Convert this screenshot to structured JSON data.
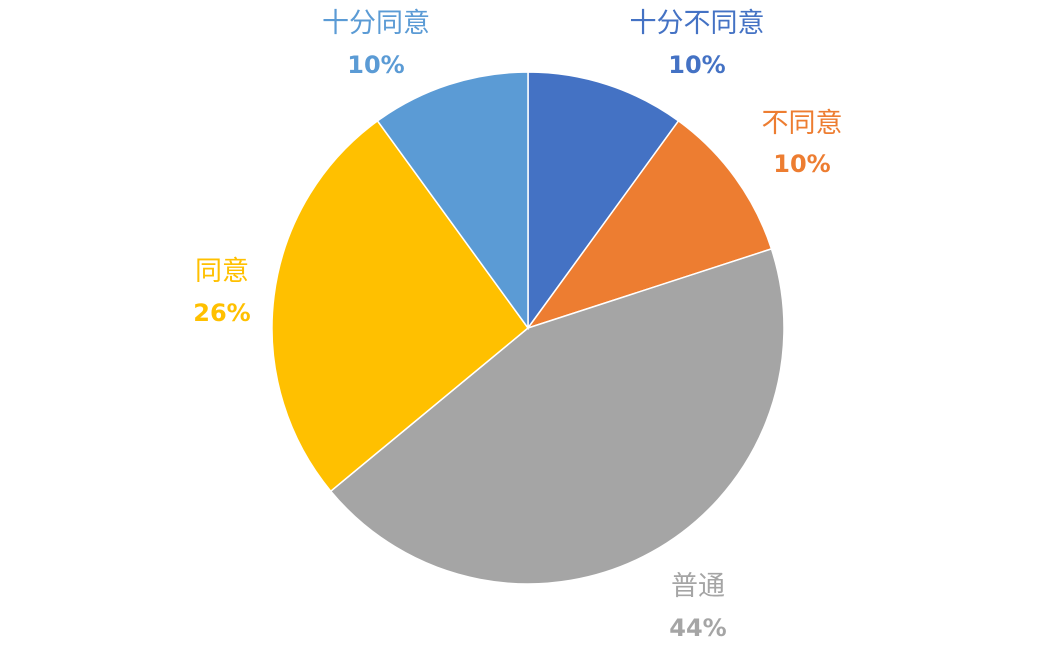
{
  "chart_data": {
    "type": "pie",
    "title": "",
    "start_angle_deg": 0,
    "direction": "clockwise",
    "legend": "none",
    "slices": [
      {
        "label": "十分不同意",
        "value": 10,
        "value_label": "10%",
        "color": "#4472C4"
      },
      {
        "label": "不同意",
        "value": 10,
        "value_label": "10%",
        "color": "#ED7D31"
      },
      {
        "label": "普通",
        "value": 44,
        "value_label": "44%",
        "color": "#A5A5A5"
      },
      {
        "label": "同意",
        "value": 26,
        "value_label": "26%",
        "color": "#FFC000"
      },
      {
        "label": "十分同意",
        "value": 10,
        "value_label": "10%",
        "color": "#5B9BD5"
      }
    ]
  }
}
